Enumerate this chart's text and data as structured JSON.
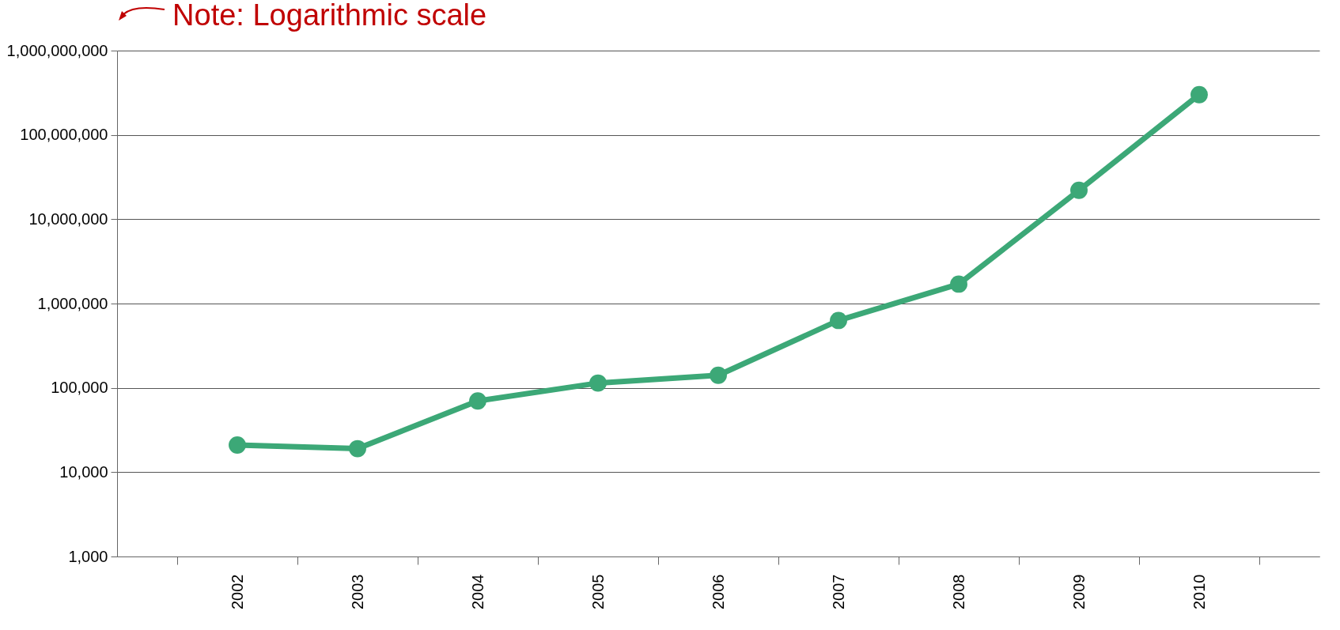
{
  "chart_data": {
    "type": "line",
    "categories": [
      "2002",
      "2003",
      "2004",
      "2005",
      "2006",
      "2007",
      "2008",
      "2009",
      "2010"
    ],
    "series": [
      {
        "color": "#3ca877",
        "values": [
          21000,
          19000,
          70000,
          114000,
          141000,
          630000,
          1700000,
          22000000,
          300000000
        ]
      }
    ],
    "ylim": [
      1000,
      1000000000
    ],
    "yticks": [
      {
        "value": 1000,
        "label": "1,000"
      },
      {
        "value": 10000,
        "label": "10,000"
      },
      {
        "value": 100000,
        "label": "100,000"
      },
      {
        "value": 1000000,
        "label": "1,000,000"
      },
      {
        "value": 10000000,
        "label": "10,000,000"
      },
      {
        "value": 100000000,
        "label": "100,000,000"
      },
      {
        "value": 1000000000,
        "label": "1,000,000,000"
      }
    ],
    "log": true,
    "grid": "y",
    "marker": "circle",
    "line_style": "solid",
    "annotations": [
      "Note: Logarithmic scale"
    ]
  }
}
